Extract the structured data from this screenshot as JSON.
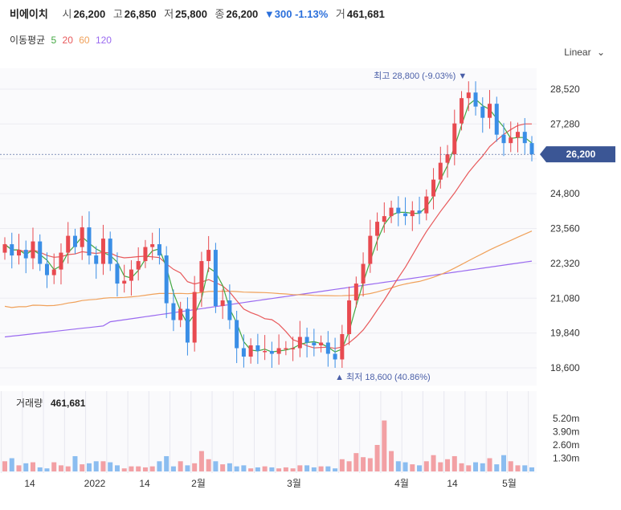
{
  "header": {
    "name": "비에이치",
    "open_label": "시",
    "open": "26,200",
    "high_label": "고",
    "high": "26,850",
    "low_label": "저",
    "low": "25,800",
    "close_label": "종",
    "close": "26,200",
    "change": "▼300 -1.13%",
    "volume_label": "거",
    "volume": "461,681"
  },
  "ma_legend": {
    "label": "이동평균",
    "items": [
      {
        "text": "5",
        "color": "#43a843"
      },
      {
        "text": "20",
        "color": "#e8595b"
      },
      {
        "text": "60",
        "color": "#f0a15a"
      },
      {
        "text": "120",
        "color": "#9a6af0"
      }
    ]
  },
  "scale_selector": {
    "label": "Linear",
    "icon": "chevron-down-icon"
  },
  "volume_panel": {
    "label": "거래량",
    "value": "461,681"
  },
  "chart_data": {
    "type": "candlestick",
    "title": "비에이치",
    "y_ticks": [
      28520,
      27280,
      26040,
      24800,
      23560,
      22320,
      21080,
      19840,
      18600
    ],
    "y_tick_labels": [
      "28,520",
      "27,280",
      "",
      "24,800",
      "23,560",
      "22,320",
      "21,080",
      "19,840",
      "18,600"
    ],
    "current_price_label": "26,200",
    "current_price": 26200,
    "high_annotation": "최고 28,800 (-9.03%)",
    "low_annotation": "최저 18,600 (40.86%)",
    "x_labels": [
      "14",
      "2022",
      "14",
      "2월",
      "3월",
      "4월",
      "14",
      "5월"
    ],
    "close_path": [
      23000,
      22600,
      22800,
      22500,
      23100,
      22300,
      21900,
      22100,
      22700,
      23300,
      22900,
      23600,
      22600,
      22300,
      23200,
      22300,
      21600,
      21700,
      22100,
      22400,
      22900,
      23000,
      22600,
      20900,
      20300,
      20700,
      19500,
      21300,
      22400,
      22800,
      20800,
      21000,
      20300,
      19300,
      19000,
      19400,
      19200,
      19200,
      19100,
      19300,
      19300,
      19300,
      19700,
      19500,
      19400,
      19500,
      19100,
      18900,
      19800,
      21000,
      21600,
      22300,
      23300,
      23800,
      24000,
      24300,
      24100,
      24000,
      24200,
      24100,
      24700,
      25300,
      25900,
      26200,
      27300,
      28200,
      28400,
      27900,
      27500,
      28000,
      26900,
      26600,
      26800,
      27000,
      26600,
      26200
    ],
    "volume_series_m": {
      "unit": "m",
      "ticks": [
        "5.20m",
        "3.90m",
        "2.60m",
        "1.30m"
      ],
      "values": [
        1.0,
        1.3,
        0.6,
        0.8,
        0.9,
        0.4,
        0.3,
        0.9,
        0.6,
        0.5,
        1.5,
        0.7,
        0.8,
        1.0,
        1.0,
        0.9,
        0.6,
        0.3,
        0.5,
        0.5,
        0.4,
        0.5,
        1.0,
        1.5,
        0.5,
        1.0,
        0.6,
        0.8,
        2.0,
        1.2,
        1.0,
        0.7,
        0.8,
        0.5,
        0.6,
        0.3,
        0.4,
        0.5,
        0.4,
        0.3,
        0.4,
        0.3,
        0.6,
        0.6,
        0.4,
        0.5,
        0.5,
        0.3,
        1.2,
        1.0,
        1.8,
        1.4,
        1.3,
        2.6,
        5.0,
        2.0,
        1.0,
        0.9,
        0.7,
        0.6,
        1.0,
        1.6,
        0.9,
        1.2,
        1.5,
        0.8,
        0.6,
        0.9,
        0.8,
        1.3,
        0.7,
        1.6,
        1.0,
        0.6,
        0.6,
        0.4
      ]
    }
  }
}
